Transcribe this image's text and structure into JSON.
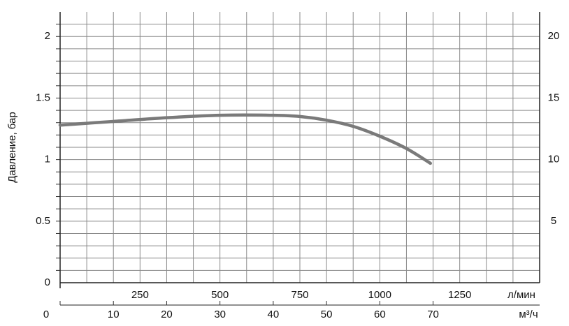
{
  "chart_data": {
    "type": "line",
    "ylabel": "Давление, бар",
    "x": [
      0,
      10,
      20,
      30,
      40,
      45,
      50,
      55,
      60,
      65,
      69.5
    ],
    "series": [
      {
        "color": "#7a7a7a",
        "values": [
          1.28,
          1.31,
          1.34,
          1.36,
          1.36,
          1.35,
          1.32,
          1.27,
          1.19,
          1.09,
          0.97
        ]
      }
    ],
    "xlim": [
      0,
      90
    ],
    "xticks": [
      0,
      10,
      20,
      30,
      40,
      50,
      60,
      70
    ],
    "xlabel": "м³/ч",
    "x2lim": [
      0,
      1500
    ],
    "x2ticks": [
      250,
      500,
      750,
      1000,
      1250
    ],
    "x2label": "л/мин",
    "ylim": [
      0,
      2.2
    ],
    "yticks": [
      0,
      0.5,
      1,
      1.5,
      2
    ],
    "y2lim": [
      0,
      22
    ],
    "y2ticks": [
      5,
      10,
      15,
      20
    ],
    "xgrid": [
      5,
      10,
      15,
      20,
      25,
      30,
      35,
      40,
      45,
      50,
      55,
      60,
      65,
      70,
      75,
      80,
      85
    ],
    "ygrid": [
      0.1,
      0.2,
      0.3,
      0.4,
      0.5,
      0.6,
      0.7,
      0.8,
      0.9,
      1,
      1.1,
      1.2,
      1.3,
      1.4,
      1.5,
      1.6,
      1.7,
      1.8,
      1.9,
      2,
      2.1
    ],
    "grid": true
  }
}
